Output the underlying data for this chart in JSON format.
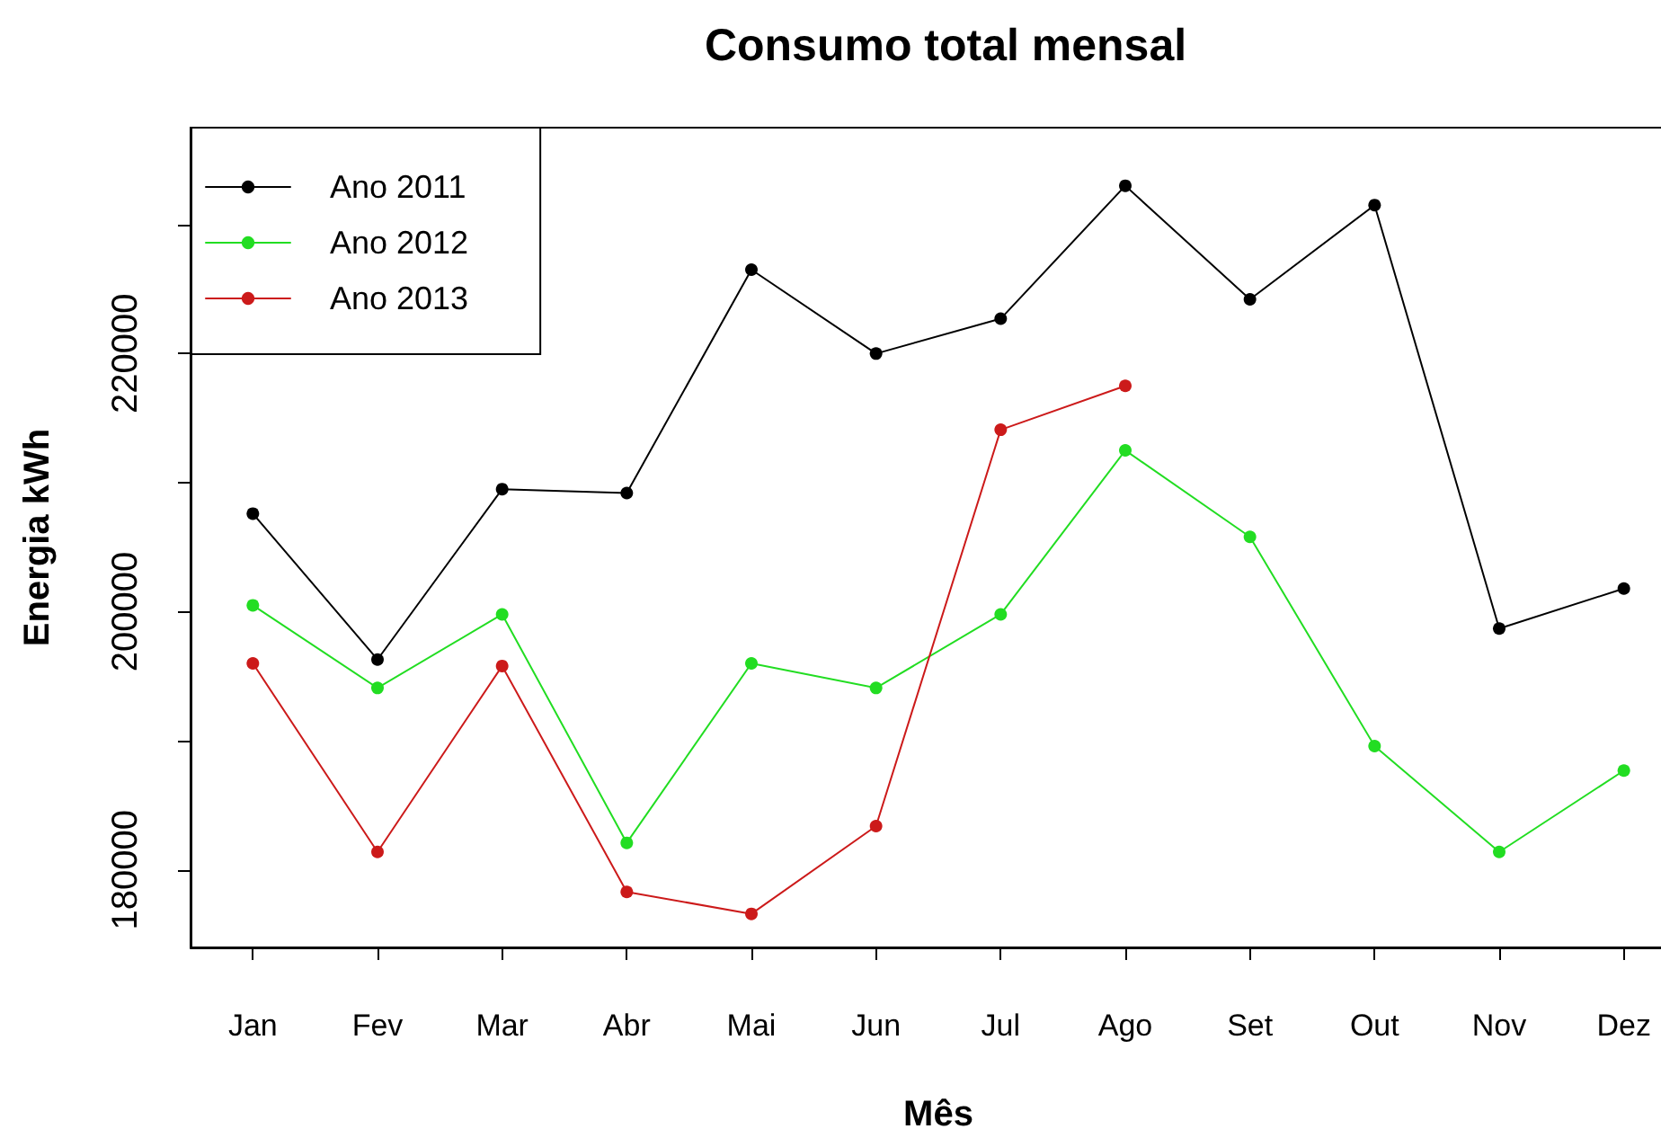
{
  "chart_data": {
    "type": "line",
    "title": "Consumo total mensal",
    "xlabel": "Mês",
    "ylabel": "Energia kWh",
    "categories": [
      "Jan",
      "Fev",
      "Mar",
      "Abr",
      "Mai",
      "Jun",
      "Jul",
      "Ago",
      "Set",
      "Out",
      "Nov",
      "Dez"
    ],
    "series": [
      {
        "name": "Ano 2011",
        "color": "#000000",
        "values": [
          207600,
          196300,
          209500,
          209200,
          226500,
          220000,
          222700,
          233000,
          224200,
          231500,
          198700,
          201800
        ]
      },
      {
        "name": "Ano 2012",
        "color": "#22dd22",
        "values": [
          200500,
          194100,
          199800,
          182100,
          196000,
          194100,
          199800,
          212500,
          205800,
          189600,
          181400,
          187700
        ]
      },
      {
        "name": "Ano 2013",
        "color": "#cc1a1a",
        "values": [
          196000,
          181400,
          195800,
          178300,
          176600,
          183400,
          214100,
          217500,
          null,
          null,
          null,
          null
        ]
      }
    ],
    "ylim": [
      174000,
      237500
    ],
    "yticks": [
      180000,
      {
        "value": 190000,
        "label": null
      },
      200000,
      {
        "value": 210000,
        "label": null
      },
      220000,
      {
        "value": 230000,
        "label": null
      }
    ],
    "legend": "top left",
    "grid": false,
    "marker": "circle",
    "line_style": "solid"
  }
}
